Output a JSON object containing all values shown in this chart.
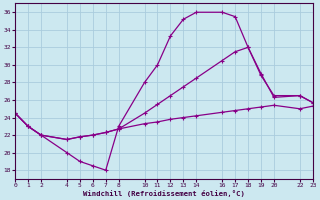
{
  "xlabel": "Windchill (Refroidissement éolien,°C)",
  "background_color": "#cce8f0",
  "grid_color": "#aaccdd",
  "line_color": "#880088",
  "ylim": [
    17.0,
    37.0
  ],
  "xlim": [
    0,
    23
  ],
  "yticks": [
    18,
    20,
    22,
    24,
    26,
    28,
    30,
    32,
    34,
    36
  ],
  "xtick_positions": [
    0,
    1,
    2,
    4,
    5,
    6,
    7,
    8,
    10,
    11,
    12,
    13,
    14,
    16,
    17,
    18,
    19,
    20,
    22,
    23
  ],
  "xtick_labels": [
    "0",
    "1",
    "2",
    "4",
    "5",
    "6",
    "7",
    "8",
    "10",
    "11",
    "12",
    "13",
    "14",
    "16",
    "17",
    "18",
    "19",
    "20",
    "22",
    "23"
  ],
  "line1_x": [
    0,
    1,
    2,
    4,
    5,
    6,
    7,
    8,
    10,
    11,
    12,
    13,
    14,
    16,
    17,
    18,
    19,
    20,
    22,
    23
  ],
  "line1_y": [
    24.5,
    23.0,
    22.0,
    21.5,
    21.8,
    22.0,
    22.3,
    22.7,
    23.3,
    23.5,
    23.8,
    24.0,
    24.2,
    24.6,
    24.8,
    25.0,
    25.2,
    25.4,
    25.0,
    25.3
  ],
  "line2_x": [
    0,
    1,
    2,
    4,
    5,
    6,
    7,
    8,
    10,
    11,
    12,
    13,
    14,
    16,
    17,
    18,
    19,
    20,
    22,
    23
  ],
  "line2_y": [
    24.5,
    23.0,
    22.0,
    20.0,
    19.0,
    18.5,
    18.0,
    23.0,
    28.0,
    30.0,
    33.3,
    35.2,
    36.0,
    36.0,
    35.5,
    32.0,
    29.0,
    26.3,
    26.5,
    25.7
  ],
  "line3_x": [
    0,
    1,
    2,
    4,
    5,
    6,
    7,
    8,
    10,
    11,
    12,
    13,
    14,
    16,
    17,
    18,
    19,
    20,
    22,
    23
  ],
  "line3_y": [
    24.5,
    23.0,
    22.0,
    21.5,
    21.8,
    22.0,
    22.3,
    22.7,
    24.5,
    25.5,
    26.5,
    27.5,
    28.5,
    30.5,
    31.5,
    32.0,
    28.8,
    26.5,
    26.5,
    25.7
  ]
}
